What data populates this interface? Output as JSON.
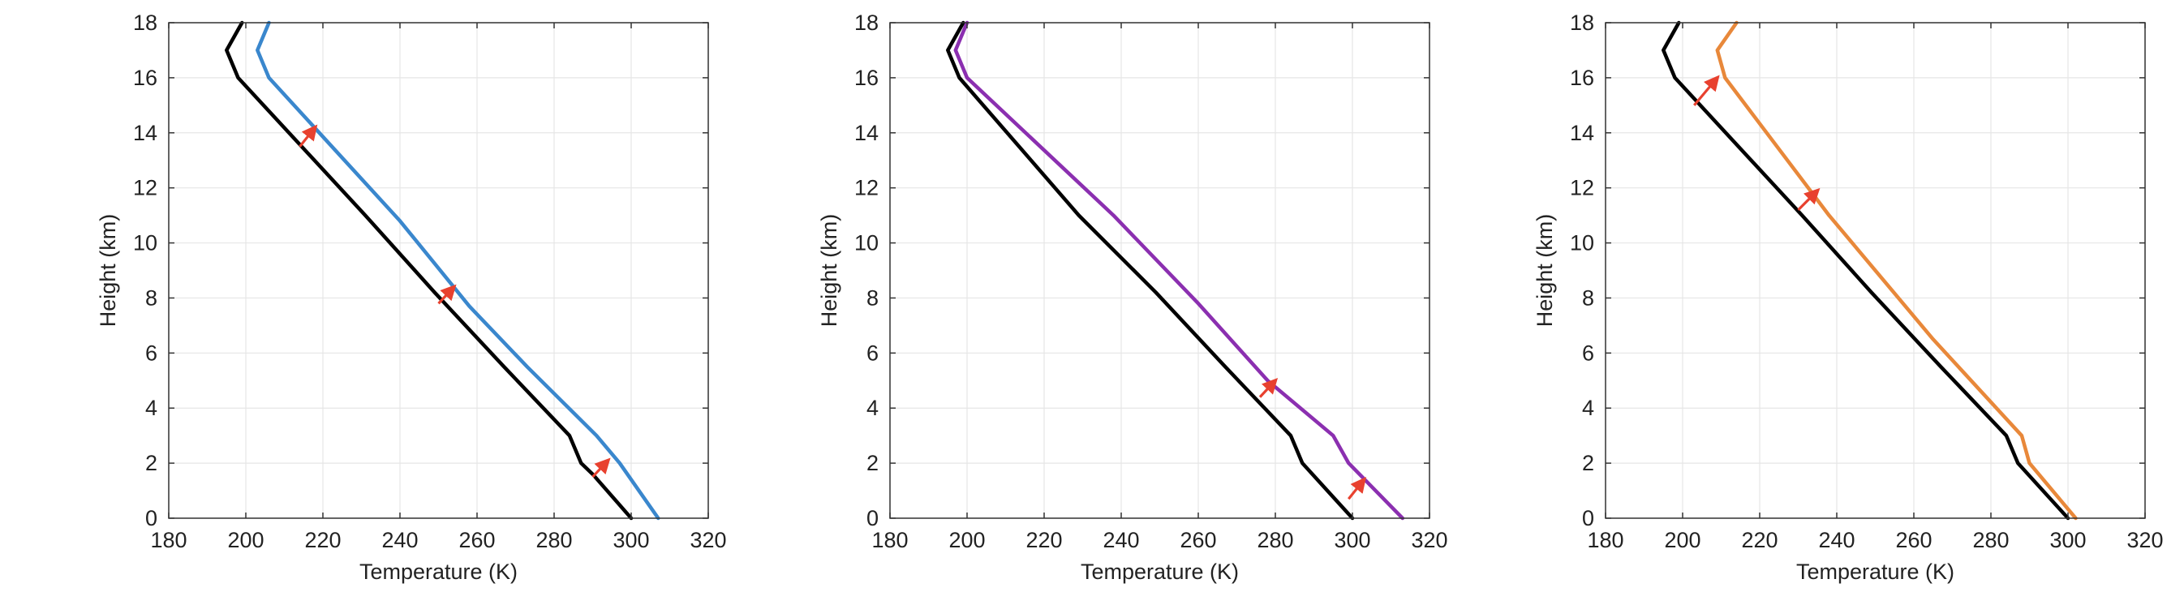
{
  "colors": {
    "baseline": "#000000",
    "arrow": "#e8412f",
    "grid": "#e6e6e6",
    "axis": "#333333"
  },
  "chart_data": [
    {
      "type": "line",
      "xlabel": "Temperature (K)",
      "ylabel": "Height (km)",
      "xlim": [
        180,
        320
      ],
      "ylim": [
        0,
        18
      ],
      "xticks": [
        180,
        200,
        220,
        240,
        260,
        280,
        300,
        320
      ],
      "yticks": [
        0,
        2,
        4,
        6,
        8,
        10,
        12,
        14,
        16,
        18
      ],
      "grid": true,
      "series": [
        {
          "color": "#000000",
          "x": [
            300,
            290,
            287,
            284,
            267,
            249,
            231,
            198,
            195,
            199
          ],
          "y": [
            0,
            1.6,
            2,
            3,
            5.5,
            8.2,
            11,
            16,
            17,
            18
          ]
        },
        {
          "color": "#3a87cd",
          "x": [
            307,
            297,
            291,
            273,
            258,
            240,
            206,
            203,
            206
          ],
          "y": [
            0,
            2,
            3,
            5.5,
            7.7,
            10.8,
            16,
            17,
            18
          ]
        }
      ],
      "arrows": [
        {
          "x": [
            214,
            218
          ],
          "y": [
            13.5,
            14.2
          ]
        },
        {
          "x": [
            250,
            254
          ],
          "y": [
            7.8,
            8.4
          ]
        },
        {
          "x": [
            290,
            294
          ],
          "y": [
            1.5,
            2.1
          ]
        }
      ]
    },
    {
      "type": "line",
      "xlabel": "Temperature (K)",
      "ylabel": "Height (km)",
      "xlim": [
        180,
        320
      ],
      "ylim": [
        0,
        18
      ],
      "xticks": [
        180,
        200,
        220,
        240,
        260,
        280,
        300,
        320
      ],
      "yticks": [
        0,
        2,
        4,
        6,
        8,
        10,
        12,
        14,
        16,
        18
      ],
      "grid": true,
      "series": [
        {
          "color": "#000000",
          "x": [
            300,
            287,
            284,
            267,
            249,
            229,
            198,
            195,
            199
          ],
          "y": [
            0,
            2,
            3,
            5.5,
            8.2,
            11,
            16,
            17,
            18
          ]
        },
        {
          "color": "#8b2fb0",
          "x": [
            313,
            299,
            295,
            278,
            260,
            238,
            200,
            197,
            200
          ],
          "y": [
            0,
            2,
            3,
            5,
            7.8,
            11,
            16,
            17,
            18
          ]
        }
      ],
      "arrows": [
        {
          "x": [
            276,
            280
          ],
          "y": [
            4.4,
            5.0
          ]
        },
        {
          "x": [
            299,
            303
          ],
          "y": [
            0.7,
            1.4
          ]
        }
      ]
    },
    {
      "type": "line",
      "xlabel": "Temperature (K)",
      "ylabel": "Height (km)",
      "xlim": [
        180,
        320
      ],
      "ylim": [
        0,
        18
      ],
      "xticks": [
        180,
        200,
        220,
        240,
        260,
        280,
        300,
        320
      ],
      "yticks": [
        0,
        2,
        4,
        6,
        8,
        10,
        12,
        14,
        16,
        18
      ],
      "grid": true,
      "series": [
        {
          "color": "#000000",
          "x": [
            300,
            287,
            284,
            267,
            249,
            231,
            198,
            195,
            199
          ],
          "y": [
            0,
            2,
            3,
            5.5,
            8.2,
            11,
            16,
            17,
            18
          ]
        },
        {
          "color": "#e8883a",
          "x": [
            302,
            290,
            288,
            265,
            238,
            211,
            209,
            214
          ],
          "y": [
            0,
            2,
            3,
            6.5,
            11,
            16,
            17,
            18
          ]
        }
      ],
      "arrows": [
        {
          "x": [
            203,
            209
          ],
          "y": [
            15,
            16
          ]
        },
        {
          "x": [
            230,
            235
          ],
          "y": [
            11.2,
            11.9
          ]
        }
      ]
    }
  ]
}
